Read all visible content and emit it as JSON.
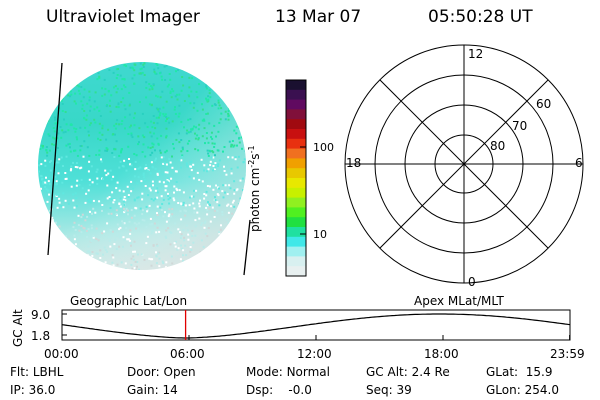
{
  "header": {
    "title": "Ultraviolet Imager",
    "date": "13 Mar 07",
    "time": "05:50:28 UT"
  },
  "colorbar": {
    "label": "photon cm",
    "label_sup1": "-2",
    "label_mid": "s",
    "label_sup2": "-1",
    "ticks": [
      "100",
      "10"
    ],
    "colors_top_to_bottom": [
      "#1a1030",
      "#3a1050",
      "#600a60",
      "#80103a",
      "#a00a10",
      "#c81010",
      "#e83010",
      "#f07020",
      "#f0a000",
      "#e8c800",
      "#e8e800",
      "#c8f000",
      "#90f020",
      "#50f020",
      "#20e040",
      "#20e0a0",
      "#40e8e8",
      "#a0f0f0",
      "#d8f0f0",
      "#e8f0f0"
    ]
  },
  "polar": {
    "mlt_labels": {
      "top": "12",
      "left": "18",
      "right": "6",
      "bottom": "0"
    },
    "lat_labels": [
      "60",
      "70",
      "80"
    ]
  },
  "timeline": {
    "left_title": "Geographic Lat/Lon",
    "right_title": "Apex MLat/MLT",
    "y_axis_label": "GC Alt",
    "y_ticks": [
      "9.0",
      "1.8"
    ],
    "x_ticks": [
      "00:00",
      "06:00",
      "12:00",
      "18:00",
      "23:59"
    ],
    "current_time_hours": 5.84,
    "colors": {
      "marker": "#e00000"
    }
  },
  "info": {
    "row1": [
      {
        "key": "Flt:",
        "val": "LBHL"
      },
      {
        "key": "Door:",
        "val": "Open"
      },
      {
        "key": "Mode:",
        "val": "Normal"
      },
      {
        "key": "GC Alt:",
        "val": "2.4 Re"
      },
      {
        "key": "GLat:",
        "val": "15.9"
      }
    ],
    "row2": [
      {
        "key": "IP:",
        "val": "36.0"
      },
      {
        "key": "Gain:",
        "val": "14"
      },
      {
        "key": "Dsp:",
        "val": "-0.0"
      },
      {
        "key": "Seq:",
        "val": "39"
      },
      {
        "key": "GLon:",
        "val": "254.0"
      }
    ]
  }
}
